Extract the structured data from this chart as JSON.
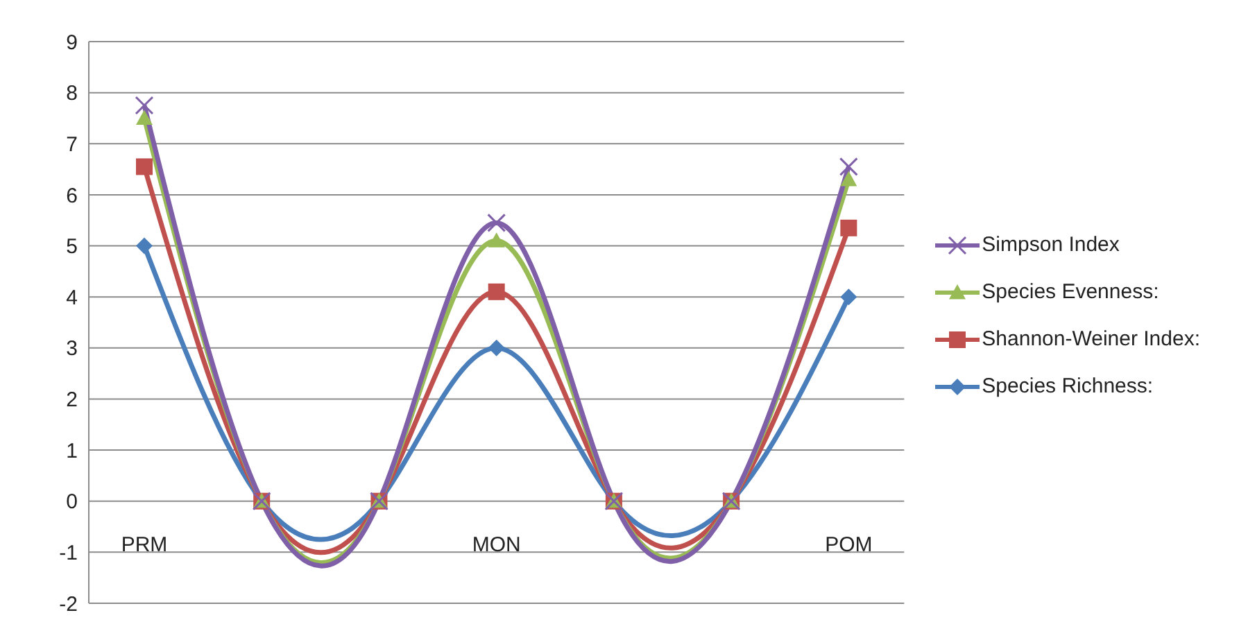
{
  "chart_data": {
    "type": "line",
    "categories": [
      "PRM",
      null,
      null,
      "MON",
      null,
      null,
      "POM"
    ],
    "series": [
      {
        "name": "Simpson Index",
        "color": "#7f5fa8",
        "marker": "cross",
        "values": [
          7.75,
          0,
          0,
          5.45,
          0,
          0,
          6.55
        ]
      },
      {
        "name": "Species Evenness:",
        "color": "#98bb55",
        "marker": "triangle",
        "values": [
          7.5,
          0,
          0,
          5.1,
          0,
          0,
          6.3
        ]
      },
      {
        "name": "Shannon-Weiner Index:",
        "color": "#c0504d",
        "marker": "square",
        "values": [
          6.55,
          0,
          0,
          4.1,
          0,
          0,
          5.35
        ]
      },
      {
        "name": "Species Richness:",
        "color": "#4a7ebb",
        "marker": "diamond",
        "values": [
          5,
          0,
          0,
          3,
          0,
          0,
          4
        ]
      }
    ],
    "ylim": [
      -2,
      9
    ],
    "yticks": [
      -2,
      -1,
      0,
      1,
      2,
      3,
      4,
      5,
      6,
      7,
      8,
      9
    ],
    "grid": "y",
    "legend": "right"
  }
}
